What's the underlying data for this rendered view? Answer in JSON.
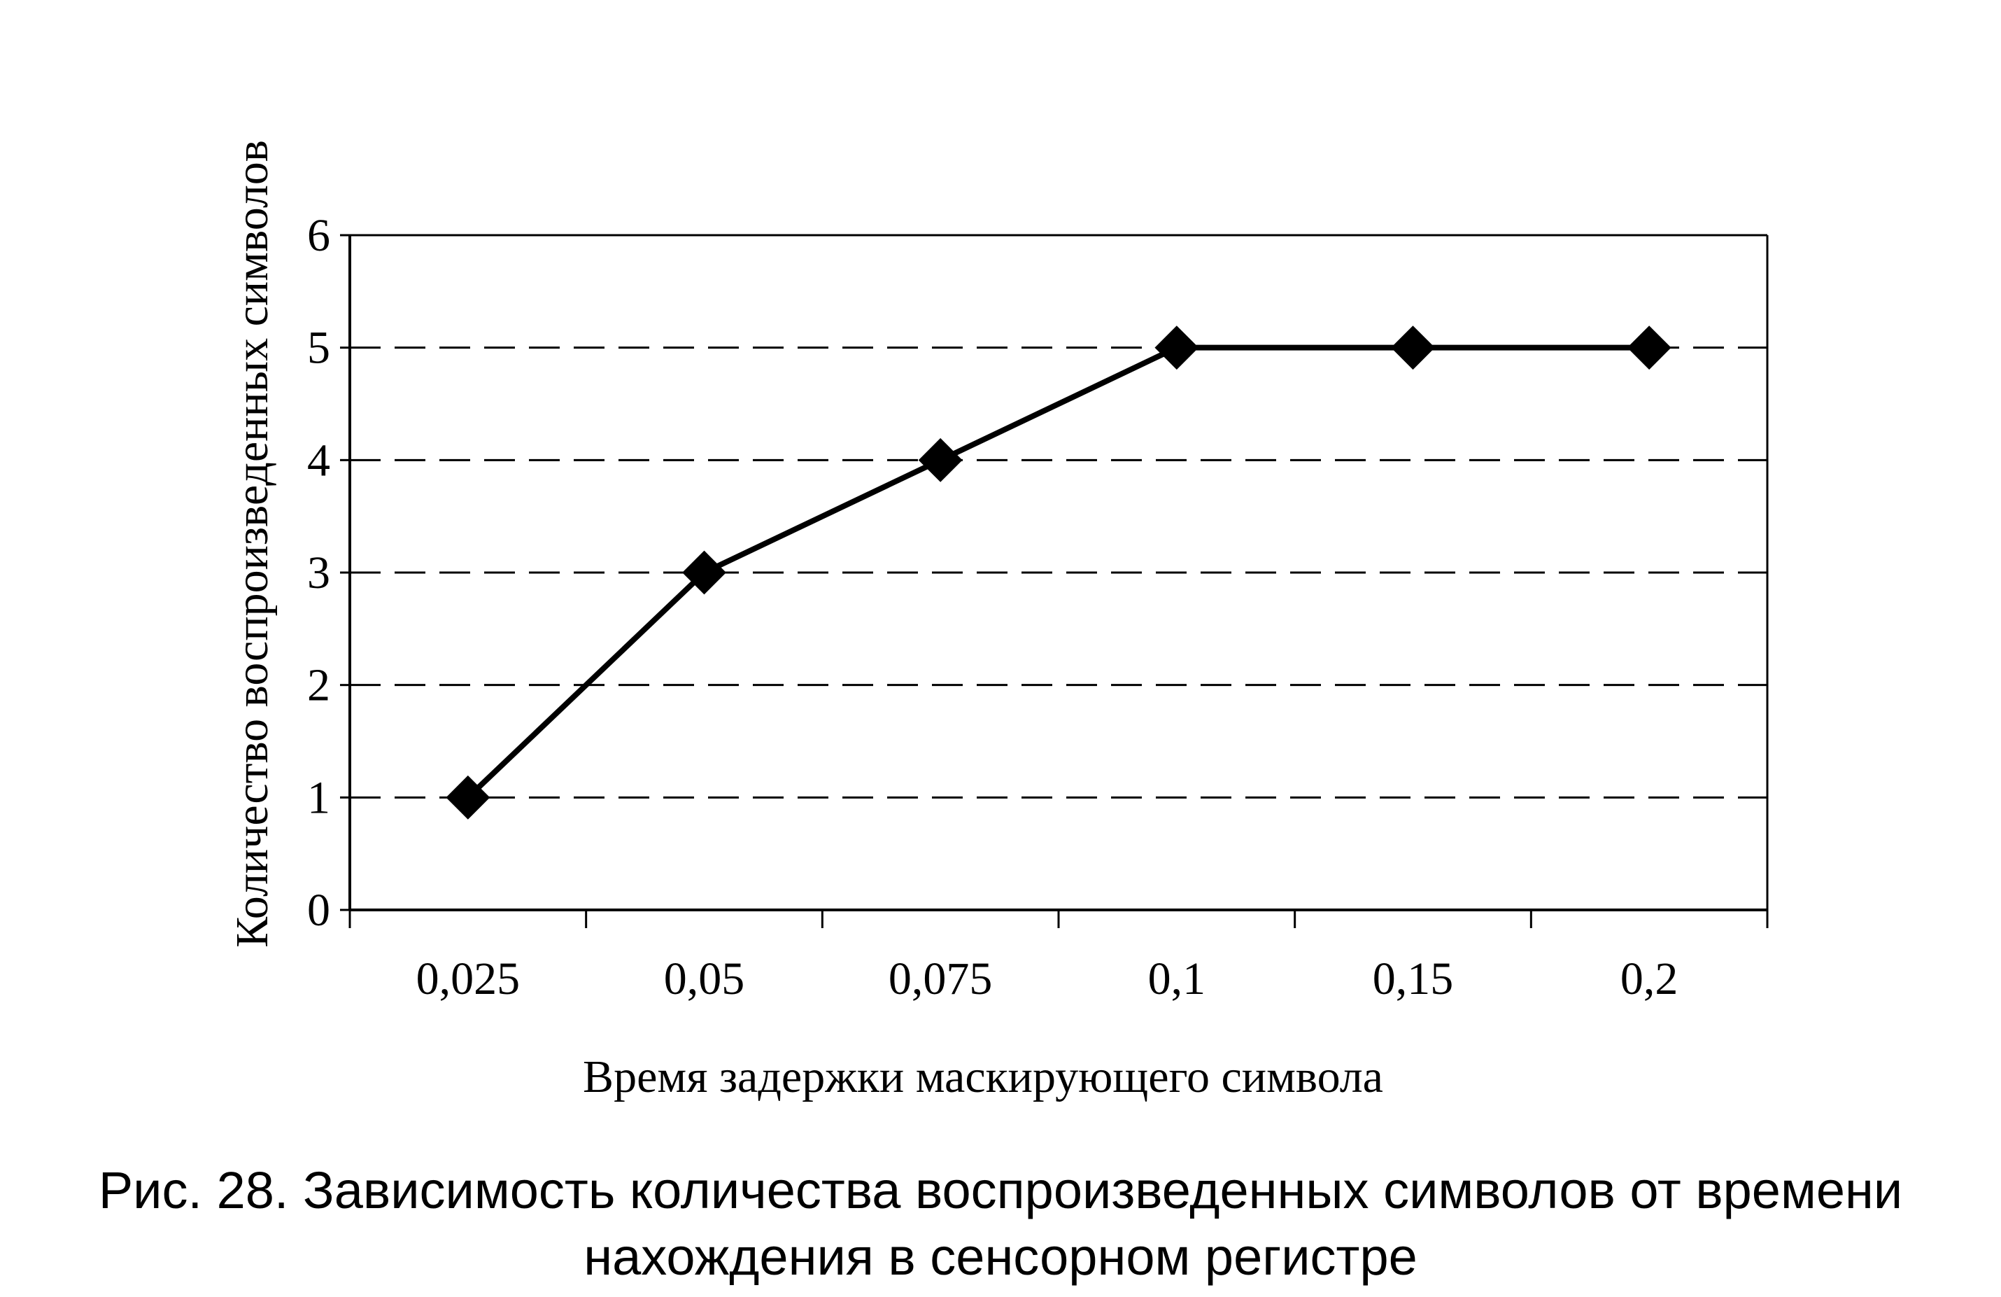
{
  "chart_data": {
    "type": "line",
    "title": "",
    "xlabel": "Время задержки маскирующего символа",
    "ylabel": "Количество воспроизведенных символов",
    "categories": [
      "0,025",
      "0,05",
      "0,075",
      "0,1",
      "0,15",
      "0,2"
    ],
    "series": [
      {
        "values": [
          1,
          3,
          4,
          5,
          5,
          5
        ]
      }
    ],
    "ylim": [
      0,
      6
    ],
    "yticks": [
      "0",
      "1",
      "2",
      "3",
      "4",
      "5",
      "6"
    ],
    "grid": "horizontal dashed",
    "marker": "diamond",
    "colors": {
      "line": "#000000",
      "grid": "#000000",
      "background": "#ffffff"
    }
  },
  "caption": {
    "line1": "Рис. 28. Зависимость количества воспроизведенных символов от времени",
    "line2": "нахождения в сенсорном регистре"
  }
}
